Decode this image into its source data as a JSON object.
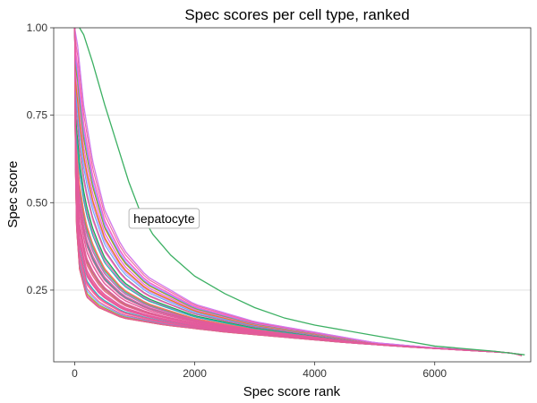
{
  "chart_data": {
    "type": "line",
    "title": "Spec scores per cell type, ranked",
    "xlabel": "Spec score rank",
    "ylabel": "Spec score",
    "xlim": [
      -350,
      7600
    ],
    "ylim": [
      0.045,
      1.0
    ],
    "x_ticks": [
      0,
      2000,
      4000,
      6000
    ],
    "x_tick_labels": [
      "0",
      "2000",
      "4000",
      "6000"
    ],
    "y_ticks": [
      0.25,
      0.5,
      0.75,
      1.0
    ],
    "y_tick_labels": [
      "0.25",
      "0.50",
      "0.75",
      "1.00"
    ],
    "grid": "horizontal",
    "legend": "none",
    "annotation": {
      "text": "hepatocyte",
      "x": 1490,
      "y": 0.455
    },
    "n_ranks": 7500,
    "highlight_series": {
      "name": "hepatocyte",
      "color": "#3cb063",
      "points": [
        [
          80,
          1.0
        ],
        [
          150,
          0.98
        ],
        [
          300,
          0.9
        ],
        [
          500,
          0.78
        ],
        [
          700,
          0.67
        ],
        [
          900,
          0.56
        ],
        [
          1100,
          0.47
        ],
        [
          1300,
          0.41
        ],
        [
          1600,
          0.35
        ],
        [
          2000,
          0.29
        ],
        [
          2500,
          0.24
        ],
        [
          3000,
          0.2
        ],
        [
          3500,
          0.17
        ],
        [
          4000,
          0.15
        ],
        [
          5000,
          0.12
        ],
        [
          6000,
          0.09
        ],
        [
          7000,
          0.075
        ],
        [
          7500,
          0.065
        ]
      ]
    },
    "background_series": {
      "count": 60,
      "colors": [
        "#f8766d",
        "#e76bf3",
        "#d39200",
        "#00b9e3",
        "#93aa00",
        "#619cff",
        "#00ba38",
        "#db72fb",
        "#ff61c3",
        "#00c19f",
        "#ff6c91",
        "#c77cff",
        "#529efe",
        "#00bfc4",
        "#fc717f",
        "#e58700"
      ],
      "dominant_color": "#e35b9b",
      "slowest_decay": [
        [
          0,
          1.0
        ],
        [
          50,
          0.95
        ],
        [
          150,
          0.78
        ],
        [
          300,
          0.62
        ],
        [
          500,
          0.48
        ],
        [
          800,
          0.37
        ],
        [
          1200,
          0.29
        ],
        [
          2000,
          0.21
        ],
        [
          3000,
          0.16
        ],
        [
          4000,
          0.13
        ],
        [
          5000,
          0.1
        ],
        [
          6000,
          0.085
        ],
        [
          7000,
          0.075
        ],
        [
          7500,
          0.065
        ]
      ],
      "fastest_decay": [
        [
          0,
          1.0
        ],
        [
          10,
          0.62
        ],
        [
          30,
          0.43
        ],
        [
          80,
          0.31
        ],
        [
          200,
          0.23
        ],
        [
          400,
          0.2
        ],
        [
          800,
          0.17
        ],
        [
          1500,
          0.15
        ],
        [
          2500,
          0.13
        ],
        [
          3500,
          0.115
        ],
        [
          4500,
          0.1
        ],
        [
          5500,
          0.088
        ],
        [
          6500,
          0.078
        ],
        [
          7300,
          0.07
        ],
        [
          7500,
          0.06
        ]
      ]
    }
  }
}
